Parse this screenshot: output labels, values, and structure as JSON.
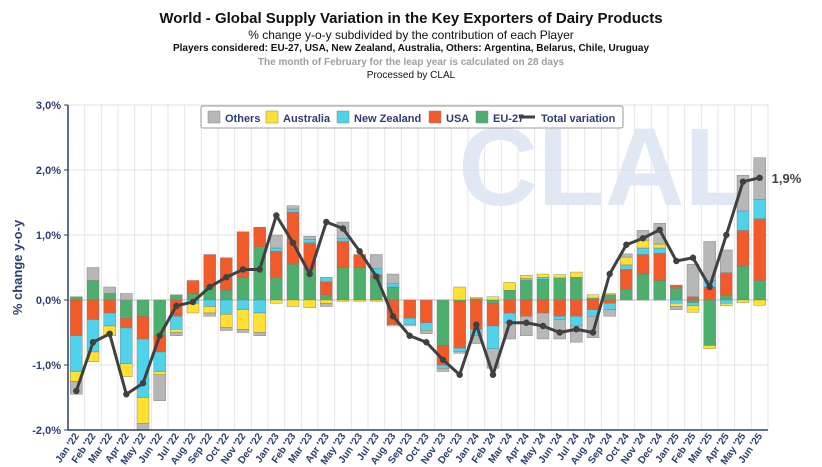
{
  "header": {
    "title": "World - Global Supply Variation in the Key Exporters of Dairy Products",
    "subtitle": "% change y-o-y subdivided by the contribution of each Player",
    "players_note": "Players considered: EU-27, USA, New Zealand, Australia, Others: Argentina, Belarus, Chile, Uruguay",
    "leap_note": "The month of February for the leap year is calculated on 28 days",
    "processed_by": "Processed by CLAL"
  },
  "colors": {
    "others": "#b7b7b7",
    "australia": "#ffe033",
    "new_zealand": "#4fd3ea",
    "usa": "#f25a2a",
    "eu27": "#4caf6e",
    "total": "#404040",
    "axis": "#2d3e70"
  },
  "chart_data": {
    "type": "bar",
    "stacked": true,
    "ylabel": "% change y-o-y",
    "ylim": [
      -2.0,
      3.0
    ],
    "yticks": [
      "-2,0%",
      "-1,0%",
      "0,0%",
      "1,0%",
      "2,0%",
      "3,0%"
    ],
    "grid": true,
    "legend_position": "top-center",
    "legend": [
      "Others",
      "Australia",
      "New Zealand",
      "USA",
      "EU-27",
      "Total variation"
    ],
    "watermark": "CLAL",
    "last_value_label": "1,9%",
    "categories": [
      "Jan '22",
      "Feb '22",
      "Mar '22",
      "Apr '22",
      "May '22",
      "Jun '22",
      "Jul '22",
      "Aug '22",
      "Sep '22",
      "Oct '22",
      "Nov '22",
      "Dec '22",
      "Jan '23",
      "Feb '23",
      "Mar '23",
      "Apr '23",
      "May '23",
      "Jun '23",
      "Jul '23",
      "Aug '23",
      "Sep '23",
      "Oct '23",
      "Nov '23",
      "Dec '23",
      "Jan '24",
      "Feb '24",
      "Mar '24",
      "Apr '24",
      "May '24",
      "Jun '24",
      "Jul '24",
      "Aug '24",
      "Sep '24",
      "Oct '24",
      "Nov '24",
      "Dec '24",
      "Jan '25",
      "Feb '25",
      "Mar '25",
      "Apr '25",
      "May '25",
      "Jun '25"
    ],
    "series": [
      {
        "name": "EU-27",
        "values": [
          0.05,
          0.3,
          0.1,
          -0.28,
          -0.25,
          -0.55,
          0.08,
          0.1,
          0.2,
          0.15,
          0.35,
          0.82,
          0.35,
          0.55,
          0.48,
          0.08,
          0.5,
          0.5,
          0.34,
          0.2,
          0.0,
          0.0,
          -0.7,
          -0.02,
          0.02,
          -0.05,
          0.15,
          0.3,
          0.32,
          0.34,
          0.35,
          0.03,
          0.08,
          0.17,
          0.4,
          0.3,
          0.18,
          -0.04,
          -0.7,
          0.07,
          0.52,
          0.3
        ]
      },
      {
        "name": "USA",
        "values": [
          -0.55,
          -0.3,
          -0.2,
          -0.15,
          -0.35,
          -0.25,
          -0.25,
          0.2,
          0.5,
          0.5,
          0.7,
          0.3,
          0.4,
          0.8,
          0.4,
          0.2,
          0.4,
          0.2,
          0.05,
          -0.38,
          -0.28,
          -0.35,
          -0.3,
          -0.72,
          -0.45,
          -0.35,
          -0.2,
          -0.25,
          -0.2,
          -0.25,
          -0.25,
          -0.15,
          -0.05,
          0.3,
          0.3,
          0.42,
          0.05,
          0.05,
          0.2,
          0.35,
          0.55,
          0.95
        ]
      },
      {
        "name": "New Zealand",
        "values": [
          -0.55,
          -0.5,
          -0.2,
          -0.55,
          -0.9,
          -0.3,
          -0.2,
          -0.05,
          -0.1,
          -0.22,
          -0.15,
          -0.2,
          0.05,
          0.05,
          0.05,
          0.07,
          0.05,
          0.0,
          0.1,
          0.05,
          -0.1,
          -0.1,
          -0.05,
          -0.05,
          -0.1,
          -0.35,
          -0.15,
          0.03,
          0.03,
          -0.05,
          -0.15,
          -0.1,
          -0.1,
          0.07,
          0.1,
          0.08,
          -0.05,
          -0.05,
          0.1,
          -0.05,
          0.3,
          0.3
        ]
      },
      {
        "name": "Australia",
        "values": [
          -0.15,
          -0.15,
          -0.15,
          -0.2,
          -0.4,
          -0.05,
          -0.05,
          -0.15,
          -0.1,
          -0.2,
          -0.3,
          -0.3,
          -0.05,
          -0.1,
          -0.12,
          -0.05,
          -0.02,
          -0.02,
          -0.02,
          -0.02,
          -0.02,
          -0.02,
          0.0,
          0.2,
          0.02,
          0.05,
          0.12,
          0.05,
          0.05,
          0.05,
          0.08,
          0.05,
          0.02,
          0.12,
          0.12,
          0.06,
          -0.05,
          -0.1,
          -0.05,
          -0.04,
          -0.04,
          -0.08
        ]
      },
      {
        "name": "Others",
        "values": [
          -0.2,
          0.2,
          0.1,
          0.1,
          -0.1,
          -0.4,
          -0.05,
          0.0,
          -0.05,
          -0.05,
          -0.05,
          -0.05,
          0.2,
          0.05,
          0.05,
          -0.05,
          0.25,
          0.0,
          0.21,
          0.15,
          0.0,
          -0.05,
          -0.05,
          -0.03,
          -0.12,
          -0.3,
          -0.25,
          -0.3,
          -0.4,
          -0.3,
          -0.25,
          -0.33,
          -0.1,
          0.05,
          0.15,
          0.32,
          -0.05,
          0.5,
          0.6,
          0.35,
          0.55,
          0.64
        ]
      }
    ],
    "total_variation": [
      -1.4,
      -0.65,
      -0.52,
      -1.45,
      -1.28,
      -0.55,
      -0.09,
      -0.03,
      0.2,
      0.35,
      0.47,
      0.47,
      1.3,
      0.88,
      0.4,
      1.2,
      1.1,
      0.75,
      0.36,
      -0.25,
      -0.55,
      -0.65,
      -0.92,
      -1.15,
      -0.38,
      -1.15,
      -0.35,
      -0.35,
      -0.4,
      -0.5,
      -0.45,
      -0.5,
      0.4,
      0.85,
      0.95,
      1.08,
      0.6,
      0.65,
      0.2,
      1.0,
      1.82,
      1.88
    ]
  }
}
